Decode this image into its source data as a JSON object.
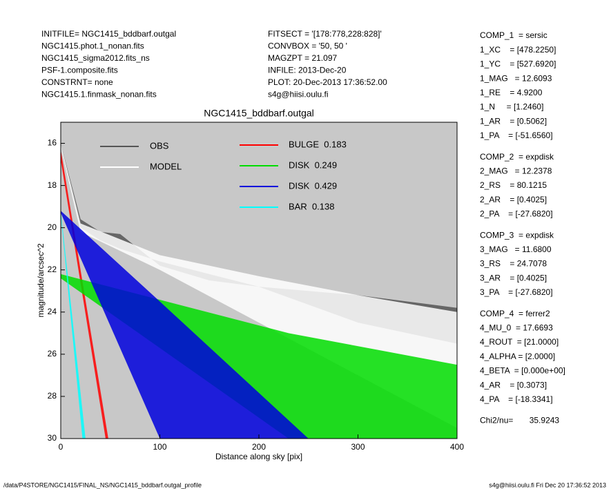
{
  "header": {
    "left": [
      "INITFILE= NGC1415_bddbarf.outgal",
      "NGC1415.phot.1_nonan.fits",
      "NGC1415_sigma2012.fits_ns",
      "PSF-1.composite.fits",
      "CONSTRNT= none",
      "NGC1415.1.finmask_nonan.fits"
    ],
    "middle": [
      "FITSECT = '[178:778,228:828]'",
      "CONVBOX = '50, 50  '",
      "MAGZPT =            21.097",
      "INFILE: 2013-Dec-20",
      "PLOT: 20-Dec-2013 17:36:52.00",
      "s4g@hiisi.oulu.fi"
    ]
  },
  "parameters": [
    [
      "COMP_1  = sersic",
      "1_XC    = [478.2250]",
      "1_YC    = [527.6920]",
      "1_MAG   = 12.6093",
      "1_RE    = 4.9200",
      "1_N     = [1.2460]",
      "1_AR    = [0.5062]",
      "1_PA    = [-51.6560]"
    ],
    [
      "COMP_2  = expdisk",
      "2_MAG   = 12.2378",
      "2_RS    = 80.1215",
      "2_AR    = [0.4025]",
      "2_PA    = [-27.6820]"
    ],
    [
      "COMP_3  = expdisk",
      "3_MAG   = 11.6800",
      "3_RS    = 24.7078",
      "3_AR    = [0.4025]",
      "3_PA    = [-27.6820]"
    ],
    [
      "COMP_4  = ferrer2",
      "4_MU_0  = 17.6693",
      "4_ROUT  = [21.0000]",
      "4_ALPHA = [2.0000]",
      "4_BETA  = [0.000e+00]",
      "4_AR    = [0.3073]",
      "4_PA    = [-18.3341]"
    ],
    [
      "Chi2/nu=       35.9243"
    ]
  ],
  "footer": {
    "left": "/data/P4STORE/NGC1415/FINAL_NS/NGC1415_bddbarf.outgal_profile",
    "right": "s4g@hiisi.oulu.fi  Fri Dec 20 17:36:52 2013"
  },
  "chart_data": {
    "type": "band",
    "title": "NGC1415_bddbarf.outgal",
    "x_label": "Distance along sky [pix]",
    "y_label": "magnitude/arcsec^2",
    "xlim": [
      0,
      400
    ],
    "xticks": [
      0,
      100,
      200,
      300,
      400
    ],
    "ylim": [
      30,
      15
    ],
    "yticks": [
      16,
      18,
      20,
      22,
      24,
      26,
      28,
      30
    ],
    "background": "#c8c8c8",
    "series": [
      {
        "name": "OBS",
        "color": "#555555",
        "x": [
          0,
          20,
          40,
          60,
          100,
          150,
          200,
          300,
          400
        ],
        "values": [
          16.0,
          19.6,
          20.2,
          20.3,
          21.8,
          22.5,
          22.8,
          23.2,
          23.8
        ],
        "values_faint": [
          16.2,
          20.0,
          20.6,
          21.0,
          21.6,
          22.2,
          22.8,
          24.5,
          25.5
        ]
      },
      {
        "name": "MODEL",
        "color": "#ffffff",
        "x": [
          0,
          20,
          100,
          200,
          300,
          400
        ],
        "values": [
          16.0,
          19.8,
          21.3,
          22.3,
          23.2,
          24.0
        ],
        "values_faint": [
          16.2,
          20.2,
          22.0,
          24.5,
          27.0,
          29.5
        ]
      },
      {
        "name": "BULGE  0.183",
        "color": "#ff0000",
        "x": [
          0,
          48
        ],
        "values": [
          16.3,
          30
        ],
        "values_faint": [
          16.8,
          30.8
        ]
      },
      {
        "name": "DISK  0.249",
        "color": "#00dd00",
        "x": [
          0,
          230,
          400
        ],
        "values": [
          22.2,
          25.0,
          26.5
        ],
        "values_faint": [
          22.4,
          30,
          30
        ]
      },
      {
        "name": "DISK  0.429",
        "color": "#0000dd",
        "x": [
          0,
          100,
          250
        ],
        "values": [
          19.2,
          23.5,
          30
        ],
        "values_faint": [
          19.3,
          30,
          30
        ]
      },
      {
        "name": "BAR  0.138",
        "color": "#00ffff",
        "x": [
          0,
          25
        ],
        "values": [
          19.2,
          30
        ],
        "values_faint": [
          19.4,
          31.5
        ]
      }
    ]
  }
}
